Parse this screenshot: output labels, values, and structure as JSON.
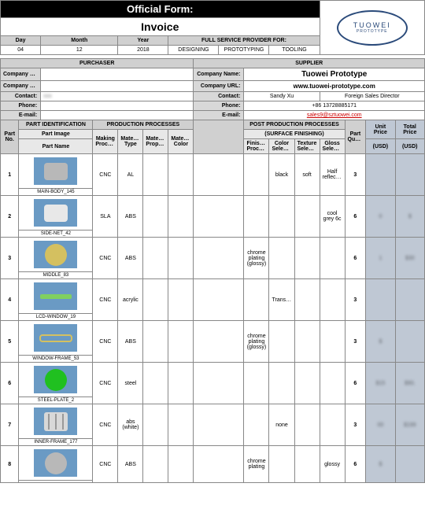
{
  "header": {
    "official": "Official Form:",
    "invoice": "Invoice"
  },
  "logo": {
    "line1": "TUOWEI",
    "line2": "PROTOTYPE"
  },
  "date": {
    "day_h": "Day",
    "month_h": "Month",
    "year_h": "Year",
    "day": "04",
    "month": "12",
    "year": "2018"
  },
  "svc": {
    "title": "FULL SERVICE PROVIDER FOR:",
    "a": "DESIGNING",
    "b": "PROTOTYPING",
    "c": "TOOLING"
  },
  "sec": {
    "purchaser": "PURCHASER",
    "supplier": "SUPPLIER"
  },
  "lbl": {
    "cname": "Company Name:",
    "curl": "Company URL:",
    "contact": "Contact:",
    "phone": "Phone:",
    "email": "E-mail:"
  },
  "sup": {
    "name": "Tuowei Prototype",
    "url": "www.tuowei-prototype.com",
    "contact_n": "Sandy Xu",
    "contact_t": "Foreign Sales Director",
    "phone": "+86 13728885171",
    "email": "sales9@sztuowei.com"
  },
  "cols": {
    "partno": "Part No.",
    "partid": "PART IDENTIFICATION",
    "pimg": "Part Image",
    "pname": "Part Name",
    "prod": "PRODUCTION PROCESSES",
    "mproc": "Making Process",
    "mtype": "Material Type",
    "mprop": "Material Property",
    "mcol": "Material Color",
    "post": "POST PRODUCTION PROCESSES",
    "surf": "(SURFACE FINISHING)",
    "fproc": "Finishing Process",
    "csel": "Color Selection",
    "tsel": "Texture Selection",
    "gsel": "Gloss Selection",
    "qty": "Part Quantity",
    "uprice": "Unit Price",
    "tprice": "Total Price",
    "usd": "(USD)",
    "usd2": "(USD)"
  },
  "rows": [
    {
      "n": "1",
      "name": "MAIN-BODY_145",
      "mp": "CNC",
      "mt": "AL",
      "fp": "",
      "cs": "black",
      "ts": "soft",
      "gs": "Half reflection",
      "q": "3",
      "up": "",
      "tp": "",
      "shape": "cyl",
      "sc": "#b8b8b8"
    },
    {
      "n": "2",
      "name": "SIDE-NET_42",
      "mp": "SLA",
      "mt": "ABS",
      "fp": "",
      "cs": "",
      "ts": "",
      "gs": "cool grey 6c",
      "q": "6",
      "up": "0",
      "tp": "$",
      "shape": "cyl",
      "sc": "#e8e8e8"
    },
    {
      "n": "3",
      "name": "MIDDLE_83",
      "mp": "CNC",
      "mt": "ABS",
      "fp": "chrome plating (glossy)",
      "cs": "",
      "ts": "",
      "gs": "",
      "q": "6",
      "up": "1",
      "tp": "$30",
      "shape": "disc",
      "sc": "#d4c060"
    },
    {
      "n": "4",
      "name": "LCD-WINDOW_19",
      "mp": "CNC",
      "mt": "acrylic",
      "fp": "",
      "cs": "Transparent",
      "ts": "",
      "gs": "",
      "q": "3",
      "up": "",
      "tp": "",
      "shape": "bar",
      "sc": "#80d060"
    },
    {
      "n": "5",
      "name": "WINDOW-FRAME_53",
      "mp": "CNC",
      "mt": "ABS",
      "fp": "chrome plating (glossy)",
      "cs": "",
      "ts": "",
      "gs": "",
      "q": "3",
      "up": "$",
      "tp": "",
      "shape": "frame",
      "sc": "#d4c060"
    },
    {
      "n": "6",
      "name": "STEEL-PLATE_2",
      "mp": "CNC",
      "mt": "steel",
      "fp": "",
      "cs": "",
      "ts": "",
      "gs": "",
      "q": "6",
      "up": "$15",
      "tp": "$90.",
      "shape": "disc",
      "sc": "#20c020"
    },
    {
      "n": "7",
      "name": "INNER-FRAME_177",
      "mp": "CNC",
      "mt": "abs (white)",
      "fp": "",
      "cs": "none",
      "ts": "",
      "gs": "",
      "q": "3",
      "up": "00",
      "tp": "$199",
      "shape": "cage",
      "sc": "#d8d8d8"
    },
    {
      "n": "8",
      "name": "",
      "mp": "CNC",
      "mt": "ABS",
      "fp": "chrome plating",
      "cs": "",
      "ts": "",
      "gs": "glossy",
      "q": "6",
      "up": "$",
      "tp": "",
      "shape": "disc",
      "sc": "#b8b8b8"
    }
  ]
}
